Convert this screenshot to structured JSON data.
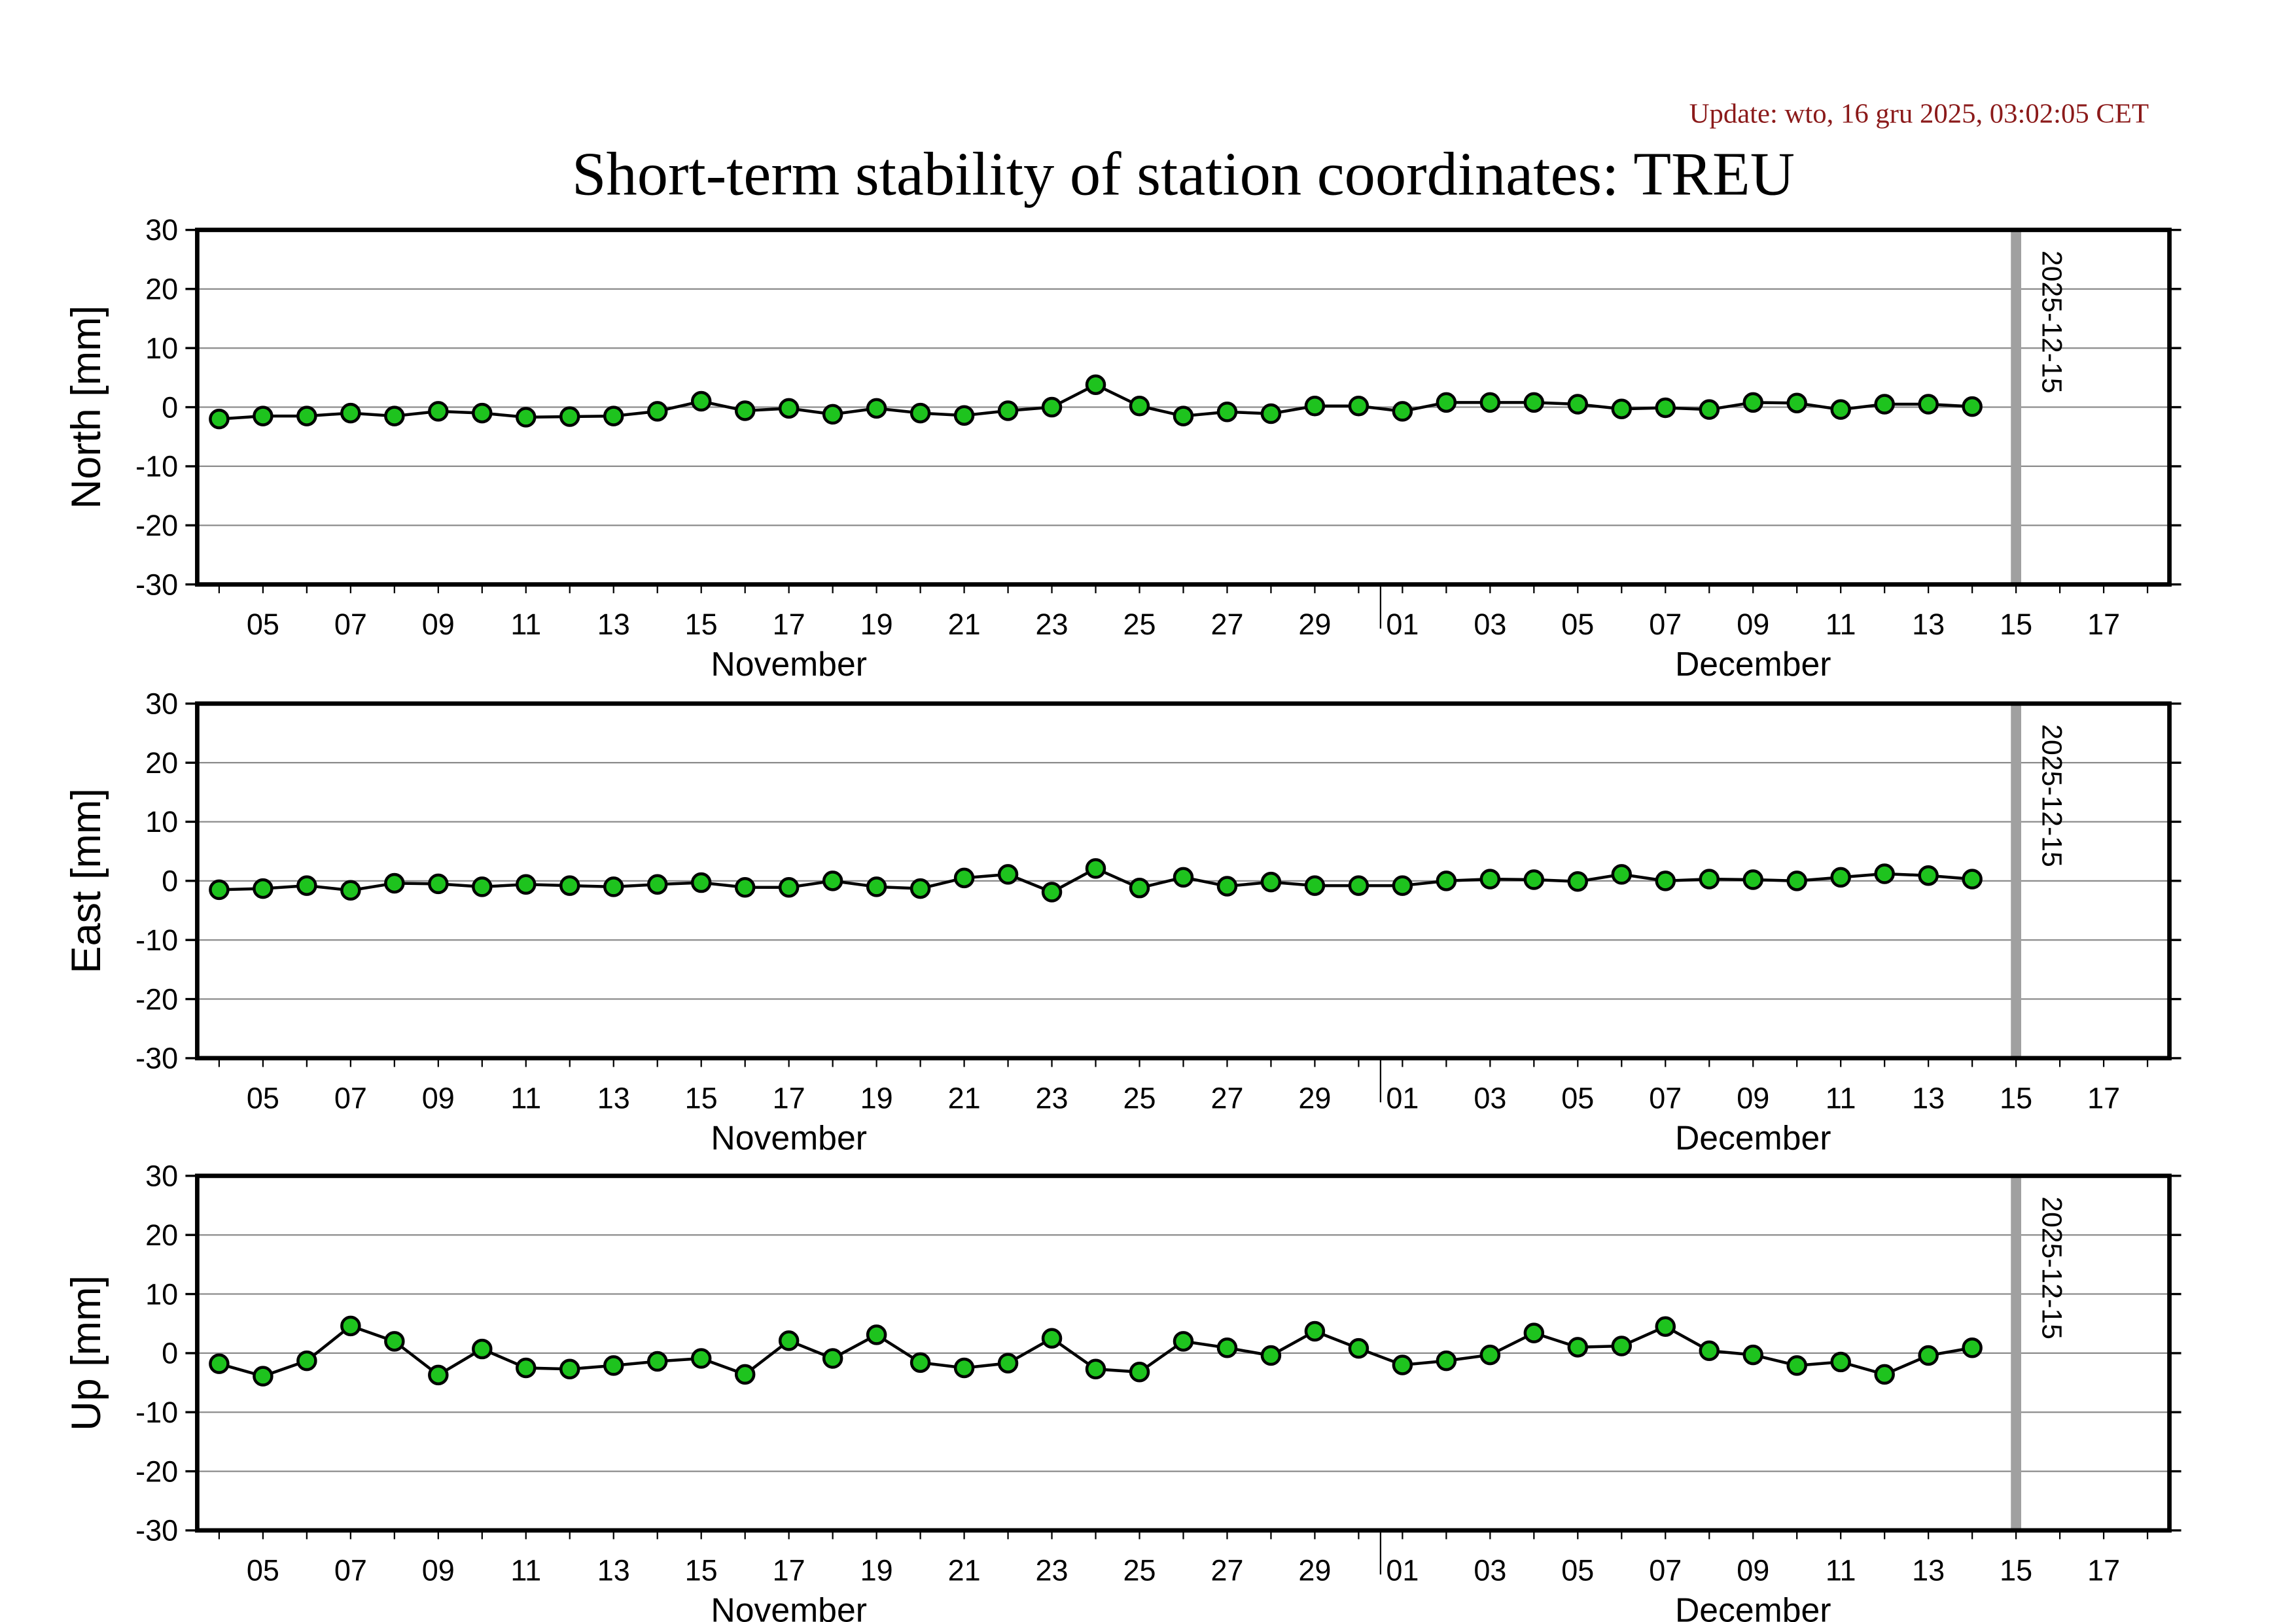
{
  "header": {
    "update_text": "Update: wto, 16 gru 2025, 03:02:05 CET",
    "update_color": "#8b1a1a",
    "title": "Short-term stability of station coordinates: TREU"
  },
  "colors": {
    "marker_fill": "#1ec31e",
    "marker_stroke": "#000000",
    "line": "#000000",
    "grid": "#8c8c8c",
    "epoch_line": "#a0a0a0"
  },
  "chart_data": [
    {
      "type": "line",
      "name": "north",
      "ylabel": "North [mm]",
      "ylim": [
        -30,
        30
      ],
      "yticks": [
        30,
        20,
        10,
        0,
        -10,
        -20,
        -30
      ],
      "grid": true,
      "x": [
        "2025-11-04",
        "2025-11-05",
        "2025-11-06",
        "2025-11-07",
        "2025-11-08",
        "2025-11-09",
        "2025-11-10",
        "2025-11-11",
        "2025-11-12",
        "2025-11-13",
        "2025-11-14",
        "2025-11-15",
        "2025-11-16",
        "2025-11-17",
        "2025-11-18",
        "2025-11-19",
        "2025-11-20",
        "2025-11-21",
        "2025-11-22",
        "2025-11-23",
        "2025-11-24",
        "2025-11-25",
        "2025-11-26",
        "2025-11-27",
        "2025-11-28",
        "2025-11-29",
        "2025-11-30",
        "2025-12-01",
        "2025-12-02",
        "2025-12-03",
        "2025-12-04",
        "2025-12-05",
        "2025-12-06",
        "2025-12-07",
        "2025-12-08",
        "2025-12-09",
        "2025-12-10",
        "2025-12-11",
        "2025-12-12",
        "2025-12-13",
        "2025-12-14"
      ],
      "values": [
        -2,
        -1.5,
        -1.5,
        -1,
        -1.5,
        -0.7,
        -1,
        -1.7,
        -1.6,
        -1.5,
        -0.7,
        1,
        -0.6,
        -0.2,
        -1.2,
        -0.2,
        -1,
        -1.4,
        -0.6,
        0,
        3.8,
        0.2,
        -1.5,
        -0.8,
        -1.1,
        0.2,
        0.2,
        -0.7,
        0.8,
        0.8,
        0.8,
        0.5,
        -0.3,
        -0.1,
        -0.4,
        0.8,
        0.7,
        -0.4,
        0.5,
        0.5,
        0.1
      ]
    },
    {
      "type": "line",
      "name": "east",
      "ylabel": "East [mm]",
      "ylim": [
        -30,
        30
      ],
      "yticks": [
        30,
        20,
        10,
        0,
        -10,
        -20,
        -30
      ],
      "grid": true,
      "x": [
        "2025-11-04",
        "2025-11-05",
        "2025-11-06",
        "2025-11-07",
        "2025-11-08",
        "2025-11-09",
        "2025-11-10",
        "2025-11-11",
        "2025-11-12",
        "2025-11-13",
        "2025-11-14",
        "2025-11-15",
        "2025-11-16",
        "2025-11-17",
        "2025-11-18",
        "2025-11-19",
        "2025-11-20",
        "2025-11-21",
        "2025-11-22",
        "2025-11-23",
        "2025-11-24",
        "2025-11-25",
        "2025-11-26",
        "2025-11-27",
        "2025-11-28",
        "2025-11-29",
        "2025-11-30",
        "2025-12-01",
        "2025-12-02",
        "2025-12-03",
        "2025-12-04",
        "2025-12-05",
        "2025-12-06",
        "2025-12-07",
        "2025-12-08",
        "2025-12-09",
        "2025-12-10",
        "2025-12-11",
        "2025-12-12",
        "2025-12-13",
        "2025-12-14"
      ],
      "values": [
        -1.5,
        -1.3,
        -0.8,
        -1.6,
        -0.4,
        -0.5,
        -1,
        -0.6,
        -0.8,
        -1,
        -0.6,
        -0.3,
        -1.1,
        -1.1,
        0,
        -1,
        -1.3,
        0.5,
        1.1,
        -1.9,
        2.1,
        -1.2,
        0.6,
        -0.9,
        -0.2,
        -0.8,
        -0.8,
        -0.8,
        0,
        0.3,
        0.2,
        -0.1,
        1.1,
        0,
        0.3,
        0.2,
        0,
        0.6,
        1.2,
        0.9,
        0.3
      ]
    },
    {
      "type": "line",
      "name": "up",
      "ylabel": "Up [mm]",
      "ylim": [
        -30,
        30
      ],
      "yticks": [
        30,
        20,
        10,
        0,
        -10,
        -20,
        -30
      ],
      "grid": true,
      "x": [
        "2025-11-04",
        "2025-11-05",
        "2025-11-06",
        "2025-11-07",
        "2025-11-08",
        "2025-11-09",
        "2025-11-10",
        "2025-11-11",
        "2025-11-12",
        "2025-11-13",
        "2025-11-14",
        "2025-11-15",
        "2025-11-16",
        "2025-11-17",
        "2025-11-18",
        "2025-11-19",
        "2025-11-20",
        "2025-11-21",
        "2025-11-22",
        "2025-11-23",
        "2025-11-24",
        "2025-11-25",
        "2025-11-26",
        "2025-11-27",
        "2025-11-28",
        "2025-11-29",
        "2025-11-30",
        "2025-12-01",
        "2025-12-02",
        "2025-12-03",
        "2025-12-04",
        "2025-12-05",
        "2025-12-06",
        "2025-12-07",
        "2025-12-08",
        "2025-12-09",
        "2025-12-10",
        "2025-12-11",
        "2025-12-12",
        "2025-12-13",
        "2025-12-14"
      ],
      "values": [
        -1.8,
        -3.9,
        -1.3,
        4.6,
        2,
        -3.7,
        0.7,
        -2.5,
        -2.7,
        -2.1,
        -1.4,
        -0.9,
        -3.6,
        2.1,
        -0.9,
        3.1,
        -1.6,
        -2.5,
        -1.7,
        2.5,
        -2.7,
        -3.2,
        2,
        0.9,
        -0.4,
        3.7,
        0.8,
        -2,
        -1.3,
        -0.3,
        3.4,
        1,
        1.2,
        4.5,
        0.4,
        -0.3,
        -2.1,
        -1.5,
        -3.6,
        -0.4,
        0.9
      ]
    }
  ],
  "x_axis": {
    "xlim": [
      "2025-11-03T12:00",
      "2025-12-18T12:00"
    ],
    "tick_labels": [
      {
        "date": "2025-11-05",
        "label": "05"
      },
      {
        "date": "2025-11-07",
        "label": "07"
      },
      {
        "date": "2025-11-09",
        "label": "09"
      },
      {
        "date": "2025-11-11",
        "label": "11"
      },
      {
        "date": "2025-11-13",
        "label": "13"
      },
      {
        "date": "2025-11-15",
        "label": "15"
      },
      {
        "date": "2025-11-17",
        "label": "17"
      },
      {
        "date": "2025-11-19",
        "label": "19"
      },
      {
        "date": "2025-11-21",
        "label": "21"
      },
      {
        "date": "2025-11-23",
        "label": "23"
      },
      {
        "date": "2025-11-25",
        "label": "25"
      },
      {
        "date": "2025-11-27",
        "label": "27"
      },
      {
        "date": "2025-11-29",
        "label": "29"
      },
      {
        "date": "2025-12-01",
        "label": "01"
      },
      {
        "date": "2025-12-03",
        "label": "03"
      },
      {
        "date": "2025-12-05",
        "label": "05"
      },
      {
        "date": "2025-12-07",
        "label": "07"
      },
      {
        "date": "2025-12-09",
        "label": "09"
      },
      {
        "date": "2025-12-11",
        "label": "11"
      },
      {
        "date": "2025-12-13",
        "label": "13"
      },
      {
        "date": "2025-12-15",
        "label": "15"
      },
      {
        "date": "2025-12-17",
        "label": "17"
      }
    ],
    "months": [
      {
        "label": "November",
        "center": "2025-11-17"
      },
      {
        "label": "December",
        "center": "2025-12-09"
      }
    ],
    "month_boundary": "2025-11-30T12:00"
  },
  "marker": {
    "date": "2025-12-15",
    "label": "2025-12-15"
  }
}
